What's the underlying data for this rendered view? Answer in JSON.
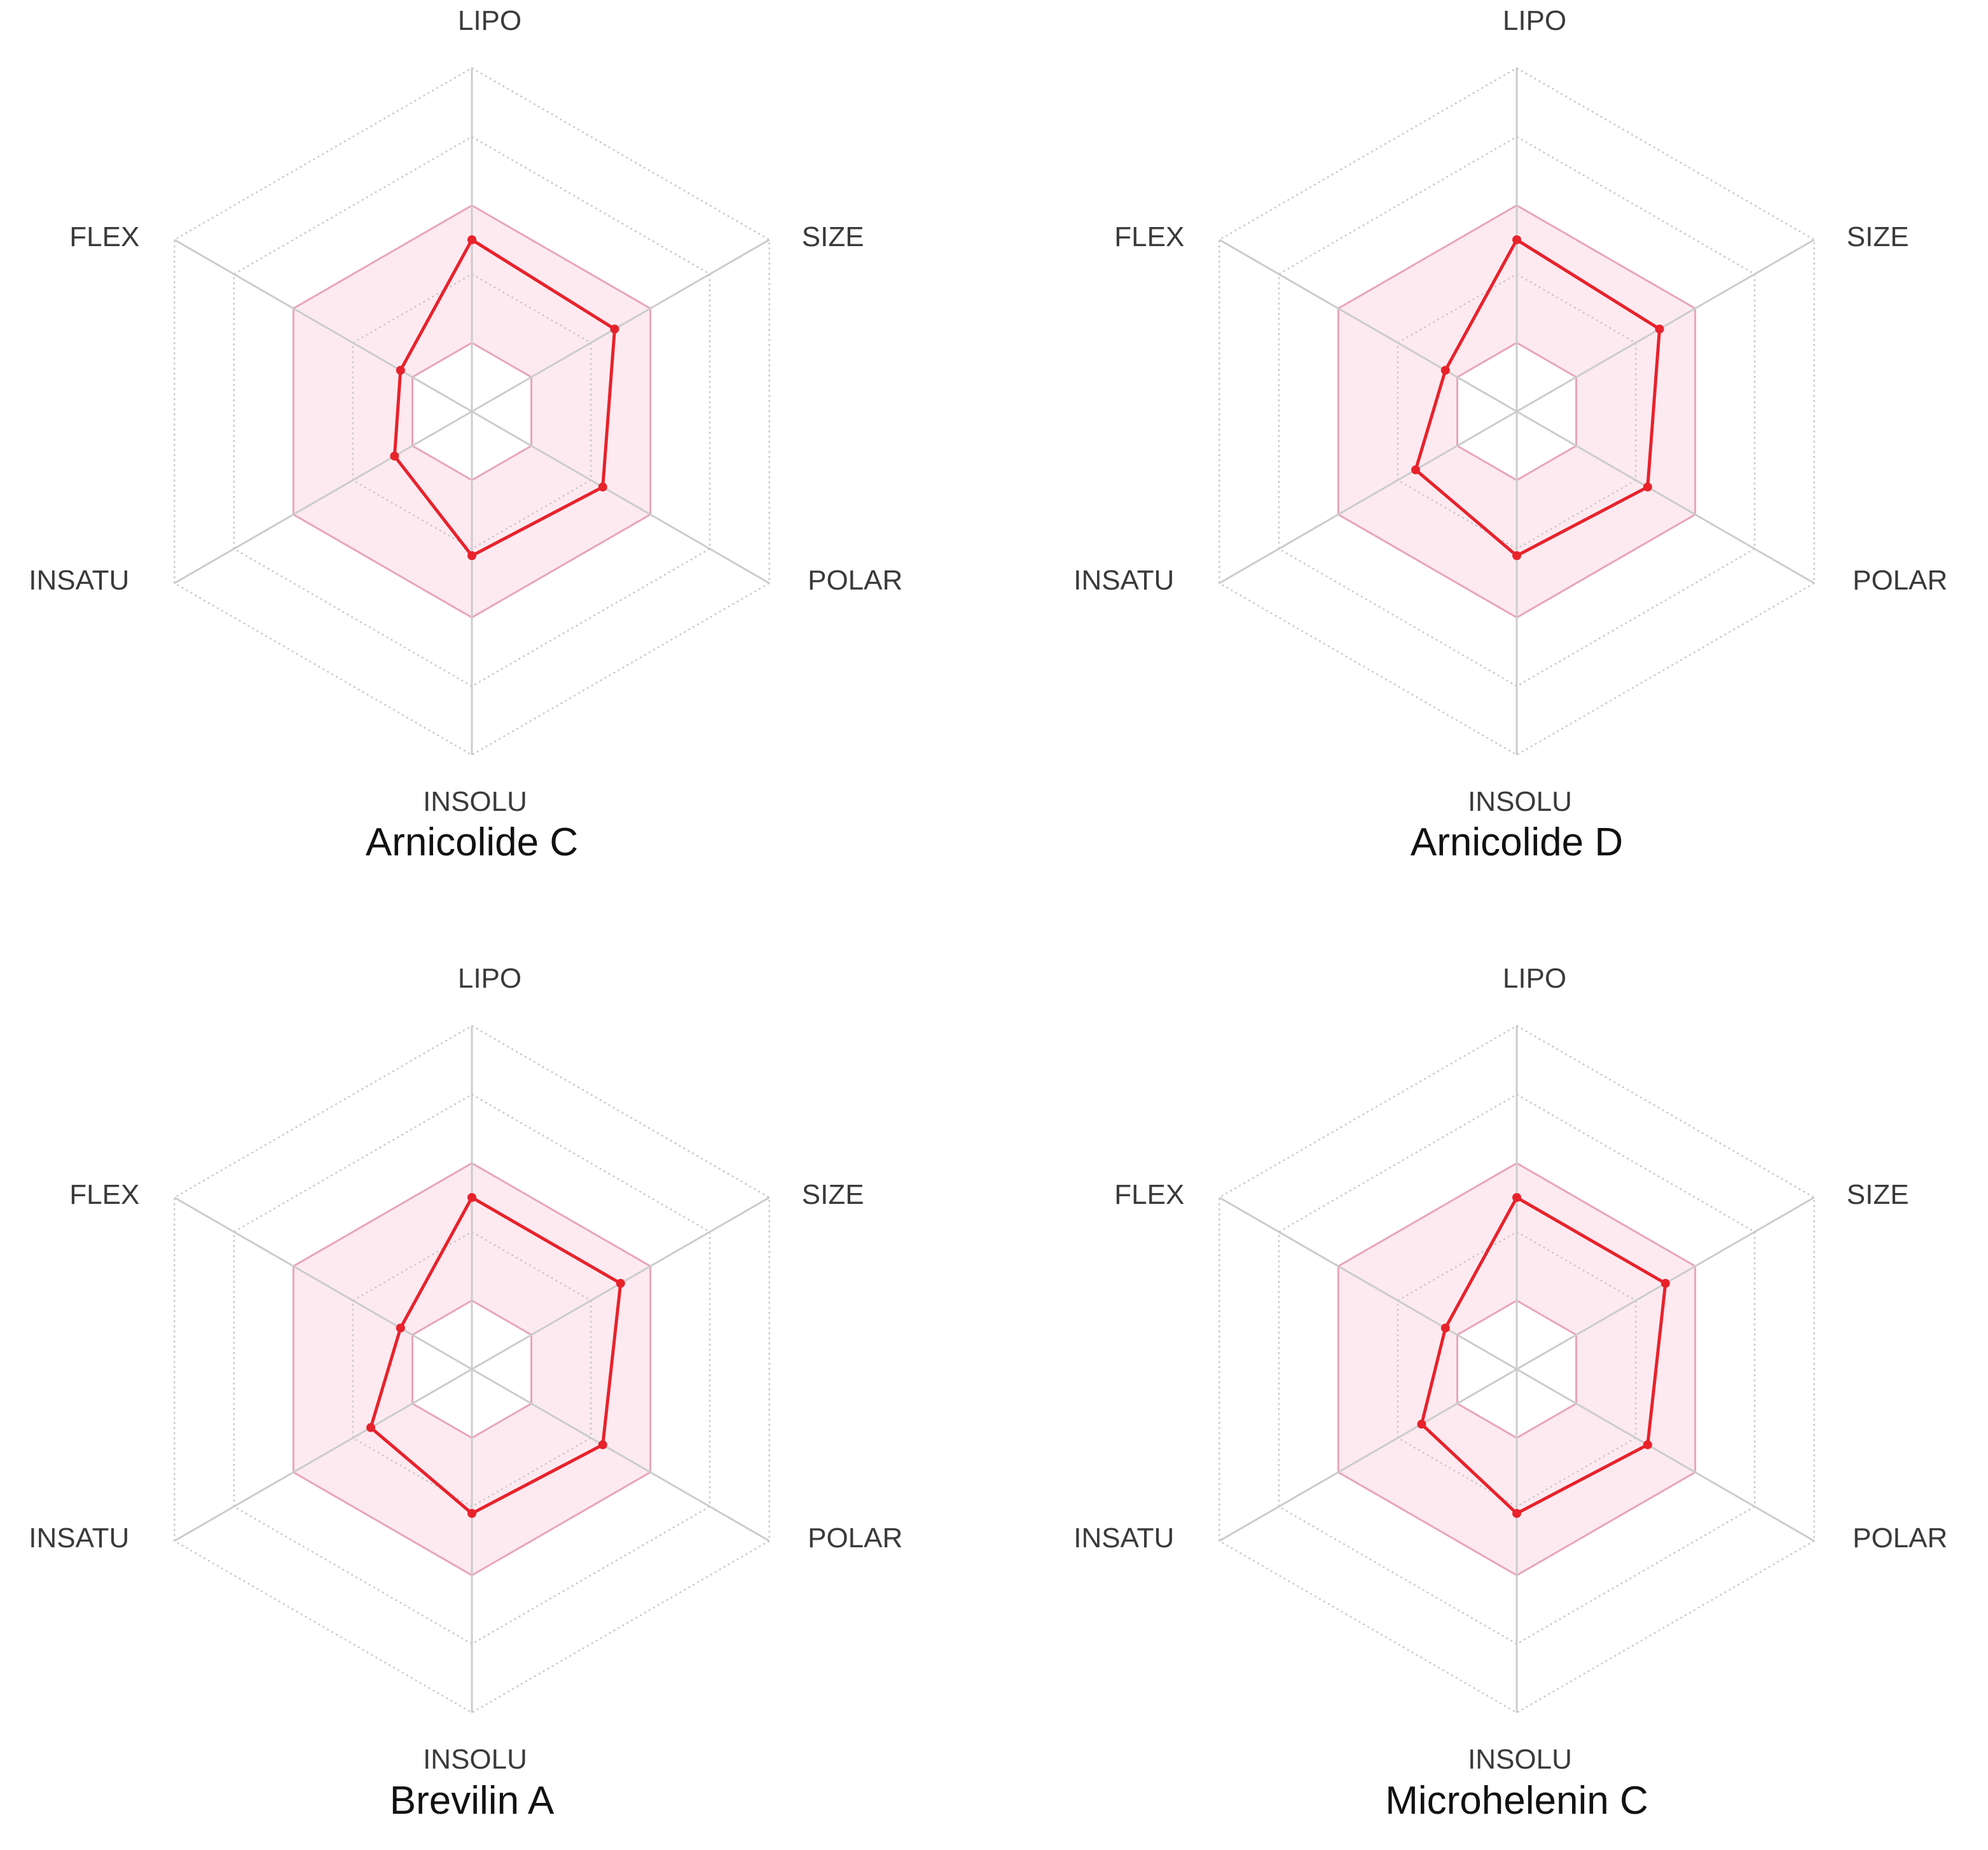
{
  "colors": {
    "grid": "#cccccc",
    "grid_dotted": "#c8c8c8",
    "band_fill": "#fdeaf1",
    "band_stroke": "#e8a6b6",
    "series": "#e8222b"
  },
  "chart_data": [
    {
      "type": "radar",
      "title": "Arnicolide C",
      "axes": [
        "LIPO",
        "SIZE",
        "POLAR",
        "INSOLU",
        "INSATU",
        "FLEX"
      ],
      "rlim": [
        0,
        5
      ],
      "optimal_range": [
        1,
        3
      ],
      "values": [
        2.5,
        2.4,
        2.2,
        2.1,
        1.3,
        1.2
      ]
    },
    {
      "type": "radar",
      "title": "Arnicolide D",
      "axes": [
        "LIPO",
        "SIZE",
        "POLAR",
        "INSOLU",
        "INSATU",
        "FLEX"
      ],
      "rlim": [
        0,
        5
      ],
      "optimal_range": [
        1,
        3
      ],
      "values": [
        2.5,
        2.4,
        2.2,
        2.1,
        1.7,
        1.2
      ]
    },
    {
      "type": "radar",
      "title": "Brevilin A",
      "axes": [
        "LIPO",
        "SIZE",
        "POLAR",
        "INSOLU",
        "INSATU",
        "FLEX"
      ],
      "rlim": [
        0,
        5
      ],
      "optimal_range": [
        1,
        3
      ],
      "values": [
        2.5,
        2.5,
        2.2,
        2.1,
        1.7,
        1.2
      ]
    },
    {
      "type": "radar",
      "title": "Microhelenin C",
      "axes": [
        "LIPO",
        "SIZE",
        "POLAR",
        "INSOLU",
        "INSATU",
        "FLEX"
      ],
      "rlim": [
        0,
        5
      ],
      "optimal_range": [
        1,
        3
      ],
      "values": [
        2.5,
        2.5,
        2.2,
        2.1,
        1.6,
        1.2
      ]
    }
  ]
}
